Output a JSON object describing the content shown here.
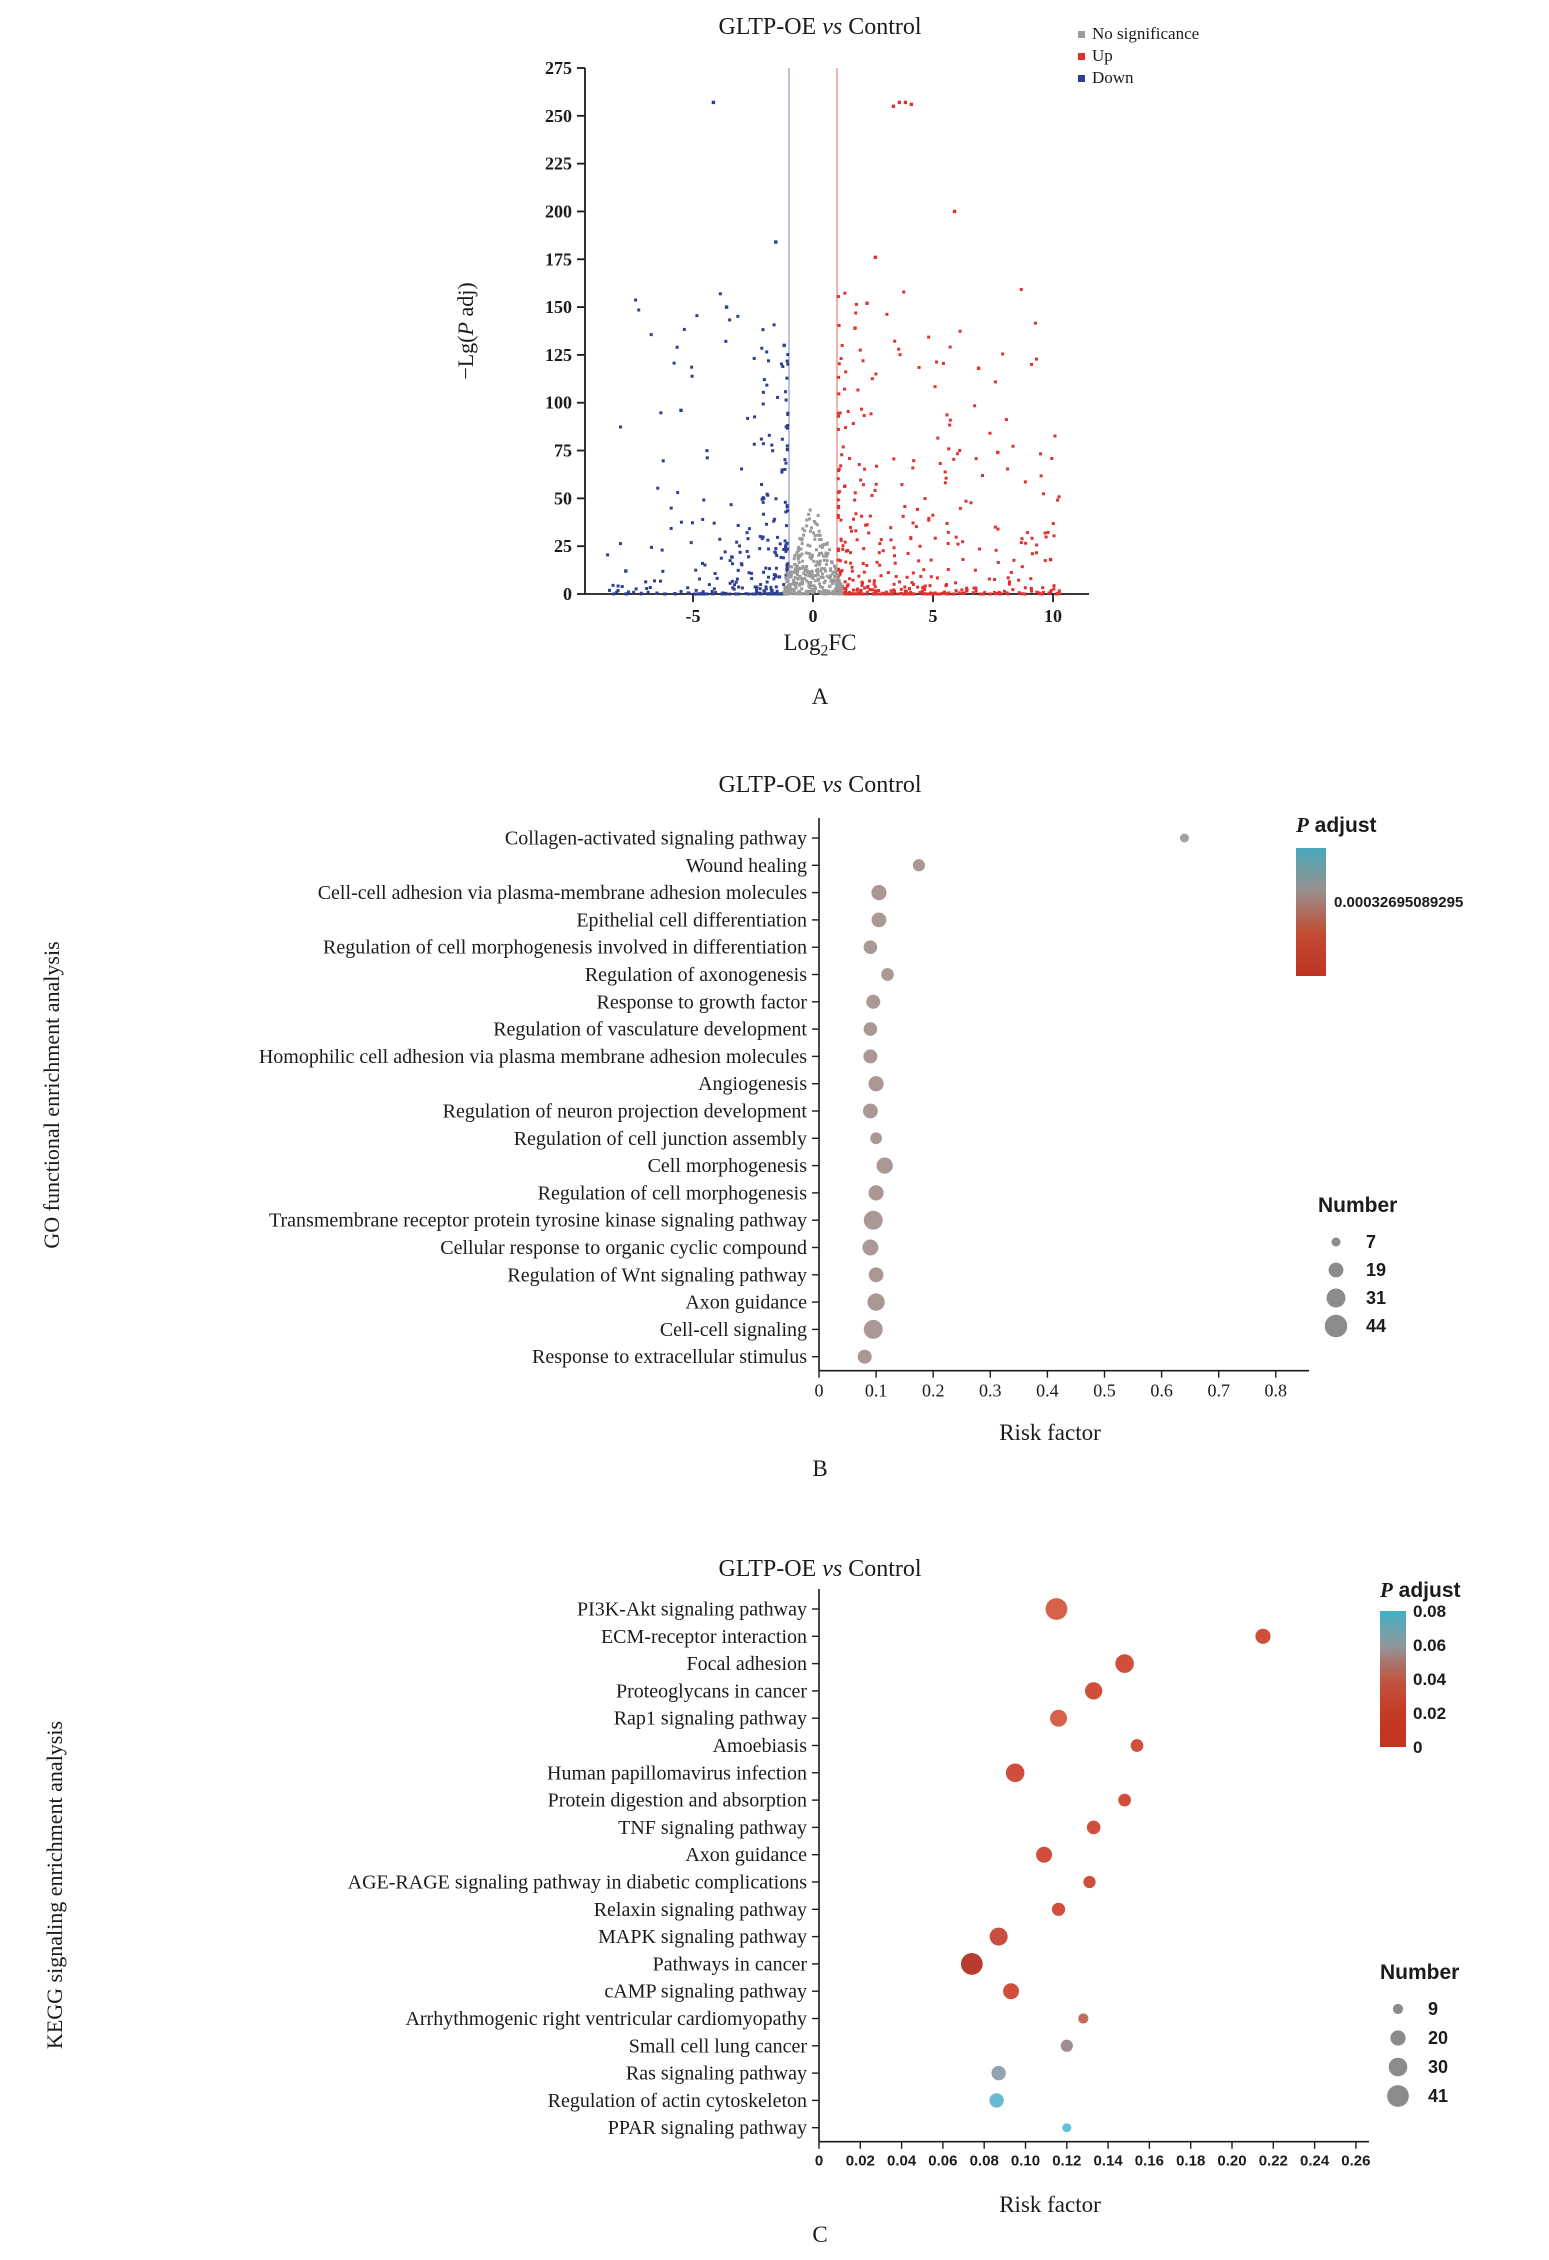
{
  "chart_data": [
    {
      "name": "volcano",
      "type": "scatter",
      "panel_tag": "A",
      "title": {
        "pre": "GLTP-OE ",
        "vs": "vs",
        "post": " Control"
      },
      "x_axis": {
        "label_parts": {
          "pre": "Log",
          "sub": "2",
          "post": "FC"
        },
        "min": -9.5,
        "max": 11.5,
        "ticks": [
          {
            "v": -5,
            "label": "-5"
          },
          {
            "v": 0,
            "label": "0"
          },
          {
            "v": 5,
            "label": "5"
          },
          {
            "v": 10,
            "label": "10"
          }
        ]
      },
      "y_axis": {
        "label_parts": {
          "pre": "−Lg(",
          "italic": "P",
          "post": " adj)"
        },
        "min": 0,
        "max": 275,
        "tick_step": 25
      },
      "legend": [
        {
          "label": "No significance",
          "color": "#9b9b9b"
        },
        {
          "label": "Up",
          "color": "#e0302f"
        },
        {
          "label": "Down",
          "color": "#2e3f92"
        }
      ],
      "threshold_lines": [
        {
          "x": -1,
          "color": "#8f9ac9"
        },
        {
          "x": 1,
          "color": "#e88078"
        }
      ],
      "series": [
        {
          "name": "Down",
          "color": "#2e3f92",
          "count": 310,
          "x_range": [
            -8.6,
            -1.05
          ],
          "profile": "cloud"
        },
        {
          "name": "Up",
          "color": "#e0302f",
          "count": 430,
          "x_range": [
            1.05,
            10.3
          ],
          "profile": "cloud"
        },
        {
          "name": "No significance",
          "color": "#9b9b9b",
          "count": 330,
          "x_range": [
            -1.2,
            1.2
          ],
          "profile": "wedge",
          "y_max": 50
        }
      ],
      "highlight_points": [
        {
          "series": "Down",
          "x": -4.15,
          "y": 257
        },
        {
          "series": "Up",
          "x": 3.35,
          "y": 255
        },
        {
          "series": "Up",
          "x": 3.6,
          "y": 257
        },
        {
          "series": "Up",
          "x": 3.85,
          "y": 257
        },
        {
          "series": "Up",
          "x": 4.1,
          "y": 256
        },
        {
          "series": "Up",
          "x": 5.9,
          "y": 200
        },
        {
          "series": "Down",
          "x": -1.55,
          "y": 184
        },
        {
          "series": "Up",
          "x": 2.6,
          "y": 176
        },
        {
          "series": "Up",
          "x": 2.25,
          "y": 152
        },
        {
          "series": "Down",
          "x": -3.6,
          "y": 150
        },
        {
          "series": "Down",
          "x": -1.2,
          "y": 130
        },
        {
          "series": "Up",
          "x": 1.75,
          "y": 139
        },
        {
          "series": "Down",
          "x": -5.5,
          "y": 96
        },
        {
          "series": "Up",
          "x": 6.9,
          "y": 118
        },
        {
          "series": "Up",
          "x": 7.7,
          "y": 74
        },
        {
          "series": "Down",
          "x": -7.8,
          "y": 12
        },
        {
          "series": "Up",
          "x": 9.9,
          "y": 18
        }
      ],
      "seed": 11
    },
    {
      "name": "go_functional_enrichment",
      "type": "bubble",
      "panel_tag": "B",
      "title": {
        "pre": "GLTP-OE ",
        "vs": "vs",
        "post": " Control"
      },
      "side_label": "GO functional enrichment analysis",
      "x_axis": {
        "label": "Risk factor",
        "min": 0,
        "max": 0.85,
        "ticks": [
          {
            "v": 0,
            "label": "0"
          },
          {
            "v": 0.1,
            "label": "0.1"
          },
          {
            "v": 0.2,
            "label": "0.2"
          },
          {
            "v": 0.3,
            "label": "0.3"
          },
          {
            "v": 0.4,
            "label": "0.4"
          },
          {
            "v": 0.5,
            "label": "0.5"
          },
          {
            "v": 0.6,
            "label": "0.6"
          },
          {
            "v": 0.7,
            "label": "0.7"
          },
          {
            "v": 0.8,
            "label": "0.8"
          }
        ]
      },
      "color_legend": {
        "title_italic": "P",
        "title_rest": " adjust",
        "value_label": "0.00032695089295",
        "gradient": [
          "#47a9ba",
          "#9a908d",
          "#c24b33",
          "#bf3322"
        ]
      },
      "size_legend": {
        "title": "Number",
        "values": [
          7,
          19,
          31,
          44
        ]
      },
      "items": [
        {
          "label": "Collagen-activated signaling pathway",
          "x": 0.64,
          "n": 7,
          "color": "#9c9c9c"
        },
        {
          "label": "Wound healing",
          "x": 0.175,
          "n": 13,
          "color": "#a5928f"
        },
        {
          "label": "Cell-cell adhesion via plasma-membrane adhesion molecules",
          "x": 0.105,
          "n": 20,
          "color": "#a5928f"
        },
        {
          "label": "Epithelial cell differentiation",
          "x": 0.105,
          "n": 19,
          "color": "#a5928f"
        },
        {
          "label": "Regulation of cell morphogenesis involved in differentiation",
          "x": 0.09,
          "n": 16,
          "color": "#a5928f"
        },
        {
          "label": "Regulation of axonogenesis",
          "x": 0.12,
          "n": 14,
          "color": "#a5928f"
        },
        {
          "label": "Response to growth factor",
          "x": 0.095,
          "n": 17,
          "color": "#a5928f"
        },
        {
          "label": "Regulation of vasculature development",
          "x": 0.09,
          "n": 16,
          "color": "#a5928f"
        },
        {
          "label": "Homophilic cell adhesion via plasma membrane adhesion molecules",
          "x": 0.09,
          "n": 17,
          "color": "#a5928f"
        },
        {
          "label": "Angiogenesis",
          "x": 0.1,
          "n": 20,
          "color": "#a5928f"
        },
        {
          "label": "Regulation of neuron projection development",
          "x": 0.09,
          "n": 19,
          "color": "#a5928f"
        },
        {
          "label": "Regulation of cell junction assembly",
          "x": 0.1,
          "n": 12,
          "color": "#a5928f"
        },
        {
          "label": "Cell morphogenesis",
          "x": 0.115,
          "n": 23,
          "color": "#a5928f"
        },
        {
          "label": "Regulation of cell morphogenesis",
          "x": 0.1,
          "n": 20,
          "color": "#a5928f"
        },
        {
          "label": "Transmembrane receptor protein tyrosine kinase signaling pathway",
          "x": 0.095,
          "n": 31,
          "color": "#a5928f"
        },
        {
          "label": "Cellular response to organic cyclic compound",
          "x": 0.09,
          "n": 22,
          "color": "#a5928f"
        },
        {
          "label": "Regulation of Wnt signaling pathway",
          "x": 0.1,
          "n": 19,
          "color": "#a5928f"
        },
        {
          "label": "Axon guidance",
          "x": 0.1,
          "n": 26,
          "color": "#a5928f"
        },
        {
          "label": "Cell-cell signaling",
          "x": 0.095,
          "n": 31,
          "color": "#a5928f"
        },
        {
          "label": "Response to extracellular stimulus",
          "x": 0.08,
          "n": 17,
          "color": "#a5928f"
        }
      ]
    },
    {
      "name": "kegg_signaling_enrichment",
      "type": "bubble",
      "panel_tag": "C",
      "title": {
        "pre": "GLTP-OE ",
        "vs": "vs",
        "post": " Control"
      },
      "side_label": "KEGG signaling enrichment analysis",
      "x_axis": {
        "label": "Risk factor",
        "min": 0,
        "max": 0.265,
        "ticks": [
          {
            "v": 0,
            "label": "0"
          },
          {
            "v": 0.02,
            "label": "0.02"
          },
          {
            "v": 0.04,
            "label": "0.04"
          },
          {
            "v": 0.06,
            "label": "0.06"
          },
          {
            "v": 0.08,
            "label": "0.08"
          },
          {
            "v": 0.1,
            "label": "0.10"
          },
          {
            "v": 0.12,
            "label": "0.12"
          },
          {
            "v": 0.14,
            "label": "0.14"
          },
          {
            "v": 0.16,
            "label": "0.16"
          },
          {
            "v": 0.18,
            "label": "0.18"
          },
          {
            "v": 0.2,
            "label": "0.20"
          },
          {
            "v": 0.22,
            "label": "0.22"
          },
          {
            "v": 0.24,
            "label": "0.24"
          },
          {
            "v": 0.26,
            "label": "0.26"
          }
        ]
      },
      "color_legend": {
        "title_italic": "P",
        "title_rest": " adjust",
        "ticks": [
          "0.08",
          "0.06",
          "0.04",
          "0.02",
          "0"
        ],
        "gradient": [
          "#40b1c5",
          "#8f989c",
          "#c05742",
          "#c43a23",
          "#c5331e"
        ]
      },
      "size_legend": {
        "title": "Number",
        "values": [
          9,
          20,
          30,
          41
        ]
      },
      "items": [
        {
          "label": "PI3K-Akt signaling pathway",
          "x": 0.115,
          "n": 41,
          "color": "#d4573e"
        },
        {
          "label": "ECM-receptor interaction",
          "x": 0.215,
          "n": 20,
          "color": "#cc4632"
        },
        {
          "label": "Focal adhesion",
          "x": 0.148,
          "n": 30,
          "color": "#cc4632"
        },
        {
          "label": "Proteoglycans in cancer",
          "x": 0.133,
          "n": 26,
          "color": "#cc4632"
        },
        {
          "label": "Rap1 signaling pathway",
          "x": 0.116,
          "n": 25,
          "color": "#d4573e"
        },
        {
          "label": "Amoebiasis",
          "x": 0.154,
          "n": 14,
          "color": "#cc4632"
        },
        {
          "label": "Human papillomavirus infection",
          "x": 0.095,
          "n": 30,
          "color": "#cc4632"
        },
        {
          "label": "Protein digestion and absorption",
          "x": 0.148,
          "n": 14,
          "color": "#cc4632"
        },
        {
          "label": "TNF signaling pathway",
          "x": 0.133,
          "n": 16,
          "color": "#cc4632"
        },
        {
          "label": "Axon guidance",
          "x": 0.109,
          "n": 22,
          "color": "#cc4632"
        },
        {
          "label": "AGE-RAGE signaling pathway in diabetic complications",
          "x": 0.131,
          "n": 13,
          "color": "#cc4632"
        },
        {
          "label": "Relaxin signaling pathway",
          "x": 0.116,
          "n": 15,
          "color": "#cc4632"
        },
        {
          "label": "MAPK signaling pathway",
          "x": 0.087,
          "n": 28,
          "color": "#c64534"
        },
        {
          "label": "Pathways in cancer",
          "x": 0.074,
          "n": 41,
          "color": "#b33125"
        },
        {
          "label": "cAMP signaling pathway",
          "x": 0.093,
          "n": 22,
          "color": "#cc4632"
        },
        {
          "label": "Arrhythmogenic right ventricular cardiomyopathy",
          "x": 0.128,
          "n": 9,
          "color": "#bc6655"
        },
        {
          "label": "Small cell lung cancer",
          "x": 0.12,
          "n": 13,
          "color": "#99888b"
        },
        {
          "label": "Ras signaling pathway",
          "x": 0.087,
          "n": 18,
          "color": "#8e9fab"
        },
        {
          "label": "Regulation of actin cytoskeleton",
          "x": 0.086,
          "n": 18,
          "color": "#62b5cc"
        },
        {
          "label": "PPAR signaling pathway",
          "x": 0.12,
          "n": 7,
          "color": "#55c0d4"
        }
      ]
    }
  ]
}
